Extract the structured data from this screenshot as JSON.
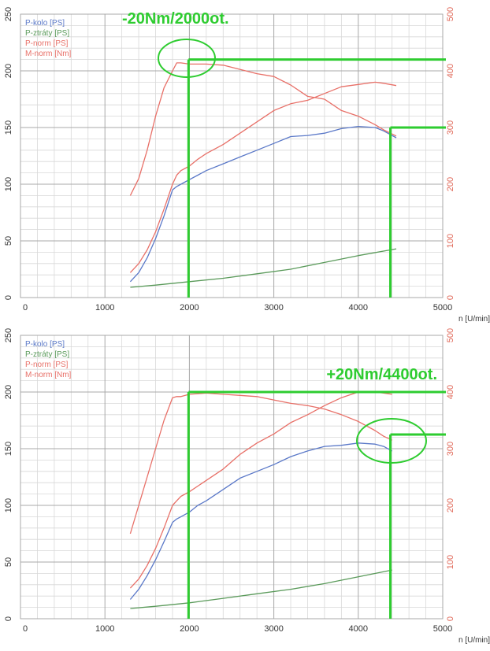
{
  "chart_data": [
    {
      "type": "line",
      "annotation": "-20Nm/2000ot.",
      "xlabel": "n [U/min]",
      "xlim": [
        0,
        5000
      ],
      "xticks": [
        0,
        1000,
        2000,
        3000,
        4000,
        5000
      ],
      "ylim_left": [
        0,
        250
      ],
      "yticks_left": [
        0,
        50,
        100,
        150,
        200,
        250
      ],
      "ylim_right": [
        0,
        500
      ],
      "yticks_right": [
        0,
        100,
        200,
        300,
        400,
        500
      ],
      "grid": true,
      "legend_position": "top-left",
      "series": [
        {
          "name": "P-kolo [PS]",
          "color": "#5a78c8",
          "axis": "left",
          "x": [
            1300,
            1400,
            1500,
            1600,
            1700,
            1800,
            1850,
            1900,
            2000,
            2100,
            2200,
            2400,
            2600,
            2800,
            3000,
            3200,
            3400,
            3600,
            3800,
            4000,
            4200,
            4300,
            4450
          ],
          "y": [
            14,
            22,
            35,
            52,
            72,
            95,
            98,
            100,
            104,
            108,
            112,
            118,
            124,
            130,
            136,
            142,
            143,
            145,
            149,
            151,
            150,
            147,
            141
          ]
        },
        {
          "name": "P-ztráty [PS]",
          "color": "#5a9a5a",
          "axis": "left",
          "x": [
            1300,
            1600,
            2000,
            2400,
            2800,
            3200,
            3600,
            4000,
            4450
          ],
          "y": [
            9,
            11,
            14,
            17,
            21,
            25,
            31,
            37,
            43
          ]
        },
        {
          "name": "P-norm [PS]",
          "color": "#e87068",
          "axis": "left",
          "x": [
            1300,
            1400,
            1500,
            1600,
            1700,
            1800,
            1850,
            1900,
            2000,
            2100,
            2200,
            2400,
            2600,
            2800,
            3000,
            3200,
            3400,
            3600,
            3800,
            4000,
            4200,
            4300,
            4450
          ],
          "y": [
            22,
            30,
            42,
            58,
            78,
            100,
            108,
            112,
            116,
            122,
            127,
            135,
            145,
            155,
            165,
            171,
            174,
            180,
            186,
            188,
            190,
            189,
            187
          ]
        },
        {
          "name": "M-norm [Nm]",
          "color": "#e87068",
          "axis": "right",
          "x": [
            1300,
            1400,
            1500,
            1600,
            1700,
            1800,
            1850,
            1900,
            2000,
            2200,
            2400,
            2800,
            3000,
            3200,
            3400,
            3600,
            3800,
            4000,
            4200,
            4300,
            4450
          ],
          "y": [
            180,
            210,
            260,
            320,
            370,
            400,
            414,
            414,
            412,
            412,
            410,
            395,
            390,
            375,
            355,
            350,
            330,
            320,
            305,
            296,
            285
          ]
        }
      ],
      "markers": {
        "vertical_x": [
          1990,
          4380
        ],
        "horizontal_right_y": [
          420,
          300
        ]
      }
    },
    {
      "type": "line",
      "annotation": "+20Nm/4400ot.",
      "xlabel": "n [U/min]",
      "xlim": [
        0,
        5000
      ],
      "xticks": [
        0,
        1000,
        2000,
        3000,
        4000,
        5000
      ],
      "ylim_left": [
        0,
        250
      ],
      "yticks_left": [
        0,
        50,
        100,
        150,
        200,
        250
      ],
      "ylim_right": [
        0,
        500
      ],
      "yticks_right": [
        0,
        100,
        200,
        300,
        400,
        500
      ],
      "grid": true,
      "legend_position": "top-left",
      "series": [
        {
          "name": "P-kolo [PS]",
          "color": "#5a78c8",
          "axis": "left",
          "x": [
            1300,
            1400,
            1500,
            1600,
            1700,
            1800,
            1850,
            1900,
            2000,
            2100,
            2200,
            2400,
            2600,
            2800,
            3000,
            3200,
            3400,
            3600,
            3800,
            4000,
            4200,
            4300,
            4400
          ],
          "y": [
            17,
            26,
            38,
            52,
            68,
            85,
            88,
            90,
            94,
            100,
            104,
            114,
            124,
            130,
            136,
            143,
            148,
            152,
            153,
            155,
            154,
            152,
            148
          ]
        },
        {
          "name": "P-ztráty [PS]",
          "color": "#5a9a5a",
          "axis": "left",
          "x": [
            1300,
            1600,
            2000,
            2400,
            2800,
            3200,
            3600,
            4000,
            4400
          ],
          "y": [
            9,
            11,
            14,
            18,
            22,
            26,
            31,
            37,
            43
          ]
        },
        {
          "name": "P-norm [PS]",
          "color": "#e87068",
          "axis": "left",
          "x": [
            1300,
            1400,
            1500,
            1600,
            1700,
            1800,
            1850,
            1900,
            2000,
            2100,
            2200,
            2400,
            2600,
            2800,
            3000,
            3200,
            3400,
            3600,
            3800,
            4000,
            4200,
            4300,
            4400
          ],
          "y": [
            27,
            35,
            47,
            62,
            80,
            100,
            104,
            108,
            112,
            117,
            122,
            132,
            145,
            155,
            163,
            173,
            180,
            188,
            195,
            200,
            200,
            199,
            198
          ]
        },
        {
          "name": "M-norm [Nm]",
          "color": "#e87068",
          "axis": "right",
          "x": [
            1300,
            1400,
            1500,
            1600,
            1700,
            1800,
            1850,
            1900,
            2000,
            2200,
            2400,
            2600,
            2800,
            3000,
            3200,
            3400,
            3600,
            3800,
            4000,
            4200,
            4300,
            4400
          ],
          "y": [
            150,
            200,
            250,
            300,
            350,
            390,
            392,
            392,
            396,
            398,
            396,
            394,
            392,
            386,
            380,
            376,
            370,
            360,
            348,
            332,
            322,
            315
          ]
        }
      ],
      "markers": {
        "vertical_x": [
          1990,
          4380
        ],
        "horizontal_right_y": [
          400,
          325
        ]
      }
    }
  ]
}
